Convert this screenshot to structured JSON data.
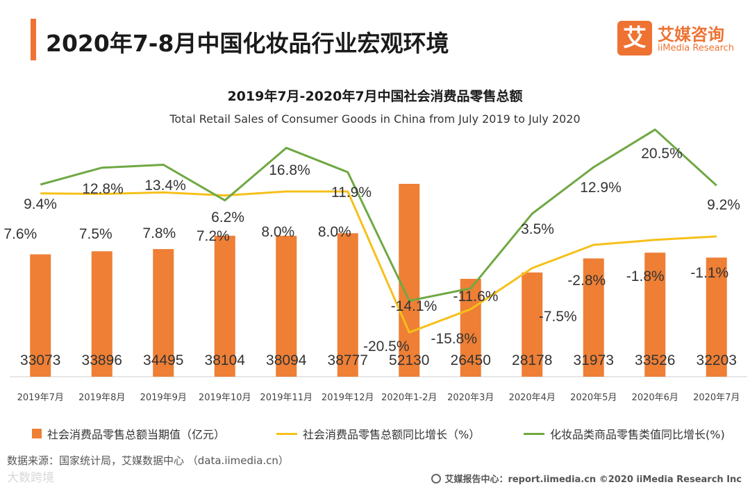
{
  "header": {
    "title": "2020年7-8月中国化妆品行业宏观环境",
    "accent_color": "#ee7232"
  },
  "logo": {
    "mark": "艾",
    "name_cn": "艾媒咨询",
    "name_en": "iiMedia Research"
  },
  "chart_data": {
    "type": "bar+line",
    "title": "2019年7月-2020年7月中国社会消费品零售总额",
    "subtitle": "Total Retail Sales of Consumer Goods in China from July 2019 to July 2020",
    "categories": [
      "2019年7月",
      "2019年8月",
      "2019年9月",
      "2019年10月",
      "2019年11月",
      "2019年12月",
      "2020年1-2月",
      "2020年3月",
      "2020年4月",
      "2020年5月",
      "2020年6月",
      "2020年7月"
    ],
    "bars": {
      "name": "社会消费品零售总额当期值（亿元）",
      "values": [
        33073,
        33896,
        34495,
        38104,
        38094,
        38777,
        52130,
        26450,
        28178,
        31973,
        33526,
        32203
      ],
      "color": "#ee7f35",
      "ylim": [
        0,
        56000
      ]
    },
    "lines": [
      {
        "name": "社会消费品零售总额同比增长（%）",
        "values": [
          7.6,
          7.5,
          7.8,
          7.2,
          8.0,
          8.0,
          -20.5,
          -15.8,
          -7.5,
          -2.8,
          -1.8,
          -1.1
        ],
        "labels": [
          "7.6%",
          "7.5%",
          "7.8%",
          "7.2%",
          "8.0%",
          "8.0%",
          "-20.5%",
          "-15.8%",
          "-7.5%",
          "-2.8%",
          "-1.8%",
          "-1.1%"
        ],
        "color": "#f5c019"
      },
      {
        "name": "化妆品类商品零售类值同比增长(%)",
        "values": [
          9.4,
          12.8,
          13.4,
          6.2,
          16.8,
          11.9,
          -14.1,
          -11.6,
          3.5,
          12.9,
          20.5,
          9.2
        ],
        "labels": [
          "9.4%",
          "12.8%",
          "13.4%",
          "6.2%",
          "16.8%",
          "11.9%",
          "-14.1%",
          "-11.6%",
          "3.5%",
          "12.9%",
          "20.5%",
          "9.2%"
        ],
        "color": "#6fa843"
      }
    ],
    "line_ylim": [
      -25,
      25
    ],
    "legend_position": "bottom",
    "grid": false
  },
  "source": "数据来源：国家统计局，艾媒数据中心 （data.iimedia.cn）",
  "watermark": "大数跨境",
  "footer": "艾媒报告中心：report.iimedia.cn ©2020 iiMedia Research Inc"
}
